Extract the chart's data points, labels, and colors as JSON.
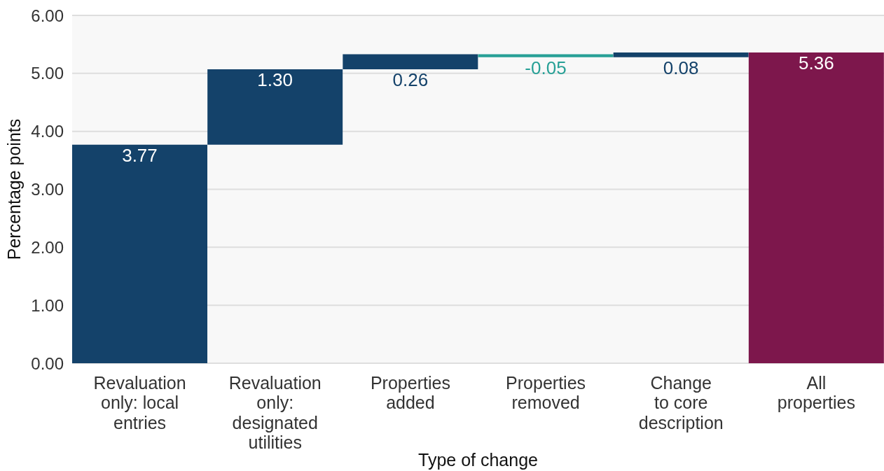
{
  "chart_data": {
    "type": "bar",
    "xlabel": "Type of change",
    "ylabel": "Percentage points",
    "categories": [
      "Revaluation\nonly: local\nentries",
      "Revaluation\nonly:\ndesignated\nutilities",
      "Properties\nadded",
      "Properties\nremoved",
      "Change\nto core\ndescription",
      "All\nproperties"
    ],
    "values": [
      3.77,
      1.3,
      0.26,
      -0.05,
      0.08,
      5.36
    ],
    "base": [
      0,
      3.77,
      5.07,
      5.33,
      5.28,
      0
    ],
    "colors": [
      "#14426a",
      "#14426a",
      "#14426a",
      "#27a096",
      "#14426a",
      "#7d174c"
    ],
    "value_labels": [
      "3.77",
      "1.30",
      "0.26",
      "-0.05",
      "0.08",
      "5.36"
    ],
    "ylim": [
      0,
      6
    ],
    "yticks": [
      {
        "value": 0,
        "label": "0.00"
      },
      {
        "value": 1,
        "label": "1.00"
      },
      {
        "value": 2,
        "label": "2.00"
      },
      {
        "value": 3,
        "label": "3.00"
      },
      {
        "value": 4,
        "label": "4.00"
      },
      {
        "value": 5,
        "label": "5.00"
      },
      {
        "value": 6,
        "label": "6.00"
      }
    ],
    "grid": "y"
  }
}
